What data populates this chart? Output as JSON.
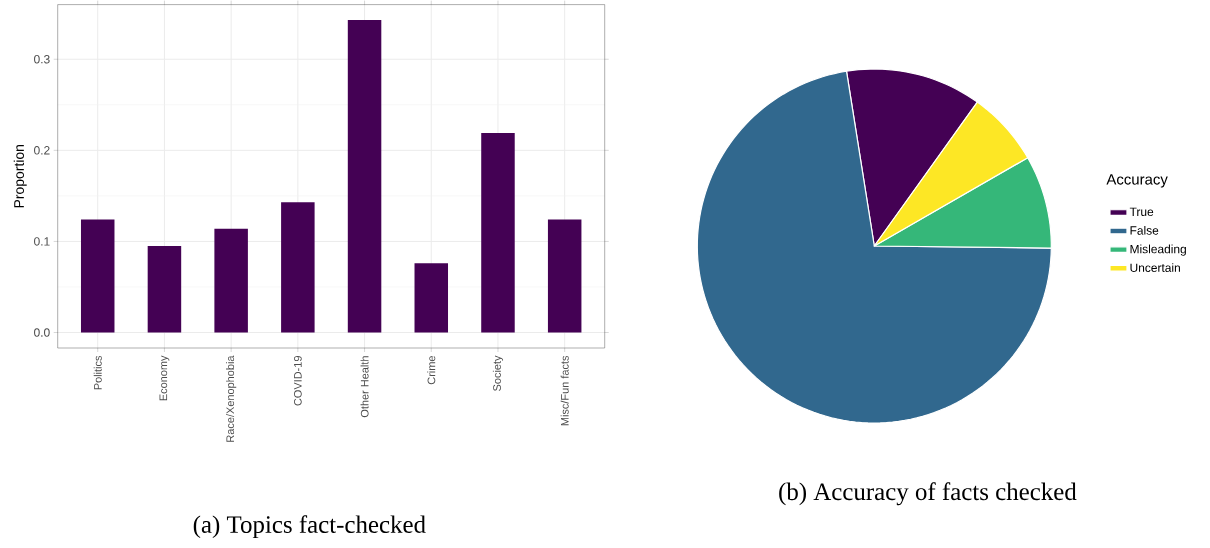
{
  "chart_data": [
    {
      "type": "bar",
      "title": "(a) Topics fact-checked",
      "ylabel": "Proportion",
      "categories": [
        "Politics",
        "Economy",
        "Race/Xenophobia",
        "COVID-19",
        "Other Health",
        "Crime",
        "Society",
        "Misc/Fun facts"
      ],
      "values": [
        0.124,
        0.095,
        0.114,
        0.143,
        0.343,
        0.076,
        0.219,
        0.124
      ],
      "color": "#440154",
      "ylim": [
        -0.017,
        0.36
      ],
      "yticks": [
        {
          "value": 0,
          "label": "0.0"
        },
        0.1,
        0.2,
        0.3
      ],
      "grid": true,
      "legend": false
    },
    {
      "type": "pie",
      "title": "(b) Accuracy of facts checked",
      "legend_title": "Accuracy",
      "categories": [
        "True",
        "False",
        "Misleading",
        "Uncertain"
      ],
      "values": [
        12.4,
        72.3,
        8.5,
        6.8
      ],
      "colors": [
        "#440154",
        "#31688e",
        "#35b779",
        "#fde725"
      ],
      "legend": "right"
    }
  ]
}
